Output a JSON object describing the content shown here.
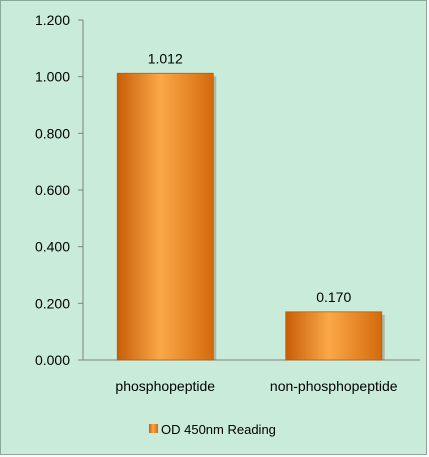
{
  "chart_data": {
    "type": "bar",
    "categories": [
      "phosphopeptide",
      "non-phosphopeptide"
    ],
    "series": [
      {
        "name": "OD 450nm Reading",
        "values": [
          1.012,
          0.17
        ],
        "labels": [
          "1.012",
          "0.170"
        ]
      }
    ],
    "ylim": [
      0,
      1.2
    ],
    "yticks": [
      "0.000",
      "0.200",
      "0.400",
      "0.600",
      "0.800",
      "1.000",
      "1.200"
    ],
    "grid": false,
    "legend_position": "bottom",
    "colors": {
      "background": "#c9ecda",
      "bar": "#f08a1a",
      "bar_dark": "#c9600a",
      "bar_light": "#fdb45a"
    }
  }
}
